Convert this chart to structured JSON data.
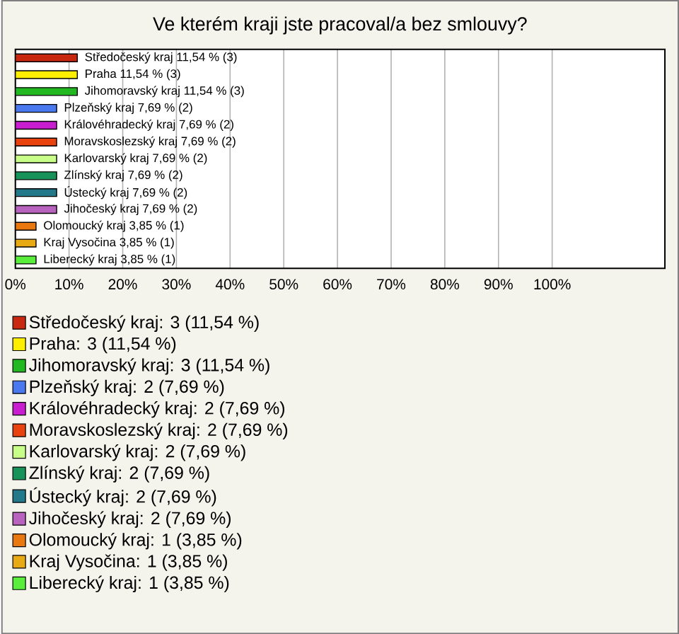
{
  "chart_data": {
    "type": "bar",
    "orientation": "horizontal",
    "title": "Ve kterém kraji jste pracoval/a bez smlouvy?",
    "categories": [
      null,
      null,
      null,
      null,
      null,
      null,
      null,
      null,
      null,
      null,
      null,
      null,
      null
    ],
    "series": [
      {
        "name": "Středočeský kraj: 3 (11,54 %)",
        "color": "#c8280f",
        "values": [
          11.54,
          null,
          null,
          null,
          null,
          null,
          null,
          null,
          null,
          null,
          null,
          null,
          null
        ],
        "value_labels": [
          "Středočeský kraj 11,54 % (3)",
          null,
          null,
          null,
          null,
          null,
          null,
          null,
          null,
          null,
          null,
          null,
          null
        ]
      },
      {
        "name": "Praha: 3 (11,54 %)",
        "color": "#ffee00",
        "values": [
          null,
          11.54,
          null,
          null,
          null,
          null,
          null,
          null,
          null,
          null,
          null,
          null,
          null
        ],
        "value_labels": [
          null,
          "Praha 11,54 % (3)",
          null,
          null,
          null,
          null,
          null,
          null,
          null,
          null,
          null,
          null,
          null
        ]
      },
      {
        "name": "Jihomoravský kraj: 3 (11,54 %)",
        "color": "#22b822",
        "values": [
          null,
          null,
          11.54,
          null,
          null,
          null,
          null,
          null,
          null,
          null,
          null,
          null,
          null
        ],
        "value_labels": [
          null,
          null,
          "Jihomoravský kraj 11,54 % (3)",
          null,
          null,
          null,
          null,
          null,
          null,
          null,
          null,
          null,
          null
        ]
      },
      {
        "name": "Plzeňský kraj: 2 (7,69 %)",
        "color": "#4a78ee",
        "values": [
          null,
          null,
          null,
          7.69,
          null,
          null,
          null,
          null,
          null,
          null,
          null,
          null,
          null
        ],
        "value_labels": [
          null,
          null,
          null,
          "Plzeňský kraj 7,69 % (2)",
          null,
          null,
          null,
          null,
          null,
          null,
          null,
          null,
          null
        ]
      },
      {
        "name": "Královéhradecký kraj: 2 (7,69 %)",
        "color": "#c81ed0",
        "values": [
          null,
          null,
          null,
          null,
          7.69,
          null,
          null,
          null,
          null,
          null,
          null,
          null,
          null
        ],
        "value_labels": [
          null,
          null,
          null,
          null,
          "Královéhradecký kraj 7,69 % (2)",
          null,
          null,
          null,
          null,
          null,
          null,
          null,
          null
        ]
      },
      {
        "name": "Moravskoslezský kraj: 2 (7,69 %)",
        "color": "#e8420f",
        "values": [
          null,
          null,
          null,
          null,
          null,
          7.69,
          null,
          null,
          null,
          null,
          null,
          null,
          null
        ],
        "value_labels": [
          null,
          null,
          null,
          null,
          null,
          "Moravskoslezský kraj 7,69 % (2)",
          null,
          null,
          null,
          null,
          null,
          null,
          null
        ]
      },
      {
        "name": "Karlovarský kraj: 2 (7,69 %)",
        "color": "#c8ff88",
        "values": [
          null,
          null,
          null,
          null,
          null,
          null,
          7.69,
          null,
          null,
          null,
          null,
          null,
          null
        ],
        "value_labels": [
          null,
          null,
          null,
          null,
          null,
          null,
          "Karlovarský kraj 7,69 % (2)",
          null,
          null,
          null,
          null,
          null,
          null
        ]
      },
      {
        "name": "Zlínský kraj: 2 (7,69 %)",
        "color": "#17935a",
        "values": [
          null,
          null,
          null,
          null,
          null,
          null,
          null,
          7.69,
          null,
          null,
          null,
          null,
          null
        ],
        "value_labels": [
          null,
          null,
          null,
          null,
          null,
          null,
          null,
          "Zlínský kraj 7,69 % (2)",
          null,
          null,
          null,
          null,
          null
        ]
      },
      {
        "name": "Ústecký kraj: 2 (7,69 %)",
        "color": "#23788a",
        "values": [
          null,
          null,
          null,
          null,
          null,
          null,
          null,
          null,
          7.69,
          null,
          null,
          null,
          null
        ],
        "value_labels": [
          null,
          null,
          null,
          null,
          null,
          null,
          null,
          null,
          "Ústecký kraj 7,69 % (2)",
          null,
          null,
          null,
          null
        ]
      },
      {
        "name": "Jihočeský kraj: 2 (7,69 %)",
        "color": "#b864be",
        "values": [
          null,
          null,
          null,
          null,
          null,
          null,
          null,
          null,
          null,
          7.69,
          null,
          null,
          null
        ],
        "value_labels": [
          null,
          null,
          null,
          null,
          null,
          null,
          null,
          null,
          null,
          "Jihočeský kraj 7,69 % (2)",
          null,
          null,
          null
        ]
      },
      {
        "name": "Olomoucký kraj: 1 (3,85 %)",
        "color": "#e8780f",
        "values": [
          null,
          null,
          null,
          null,
          null,
          null,
          null,
          null,
          null,
          null,
          3.85,
          null,
          null
        ],
        "value_labels": [
          null,
          null,
          null,
          null,
          null,
          null,
          null,
          null,
          null,
          null,
          "Olomoucký kraj 3,85 % (1)",
          null,
          null
        ]
      },
      {
        "name": "Kraj Vysočina: 1 (3,85 %)",
        "color": "#e8aa14",
        "values": [
          null,
          null,
          null,
          null,
          null,
          null,
          null,
          null,
          null,
          null,
          null,
          3.85,
          null
        ],
        "value_labels": [
          null,
          null,
          null,
          null,
          null,
          null,
          null,
          null,
          null,
          null,
          null,
          "Kraj Vysočina 3,85 % (1)",
          null
        ]
      },
      {
        "name": "Liberecký kraj: 1 (3,85 %)",
        "color": "#5aee3c",
        "values": [
          null,
          null,
          null,
          null,
          null,
          null,
          null,
          null,
          null,
          null,
          null,
          null,
          3.85
        ],
        "value_labels": [
          null,
          null,
          null,
          null,
          null,
          null,
          null,
          null,
          null,
          null,
          null,
          null,
          "Liberecký kraj 3,85 % (1)"
        ]
      }
    ],
    "xlim": [
      0,
      121
    ],
    "xticks": [
      {
        "value": 0,
        "label": "0%"
      },
      {
        "value": 10,
        "label": "10%"
      },
      {
        "value": 20,
        "label": "20%"
      },
      {
        "value": 30,
        "label": "30%"
      },
      {
        "value": 40,
        "label": "40%"
      },
      {
        "value": 50,
        "label": "50%"
      },
      {
        "value": 60,
        "label": "60%"
      },
      {
        "value": 70,
        "label": "70%"
      },
      {
        "value": 80,
        "label": "80%"
      },
      {
        "value": 90,
        "label": "90%"
      },
      {
        "value": 100,
        "label": "100%"
      }
    ],
    "grid": "x",
    "legend": "bottom"
  }
}
